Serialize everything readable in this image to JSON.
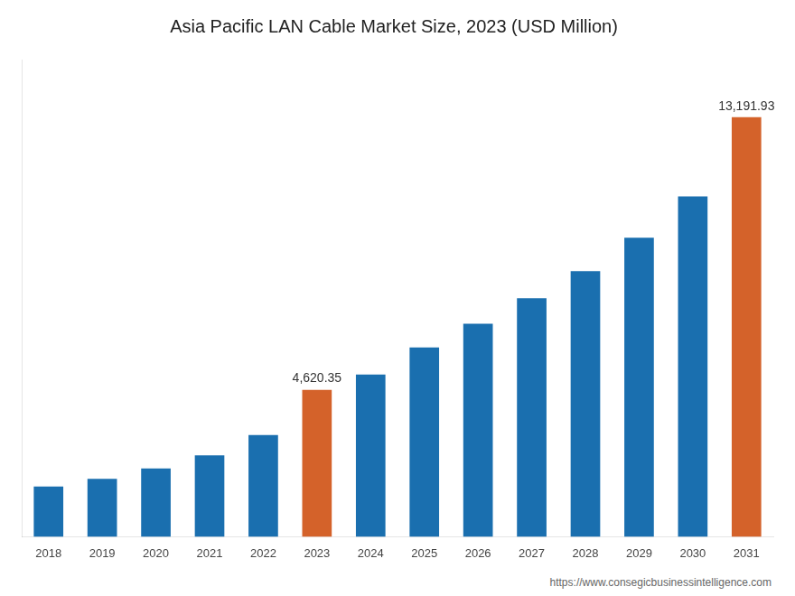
{
  "chart_data": {
    "type": "bar",
    "title": "Asia Pacific LAN Cable Market Size, 2023 (USD Million)",
    "categories": [
      "2018",
      "2019",
      "2020",
      "2021",
      "2022",
      "2023",
      "2024",
      "2025",
      "2026",
      "2027",
      "2028",
      "2029",
      "2030",
      "2031"
    ],
    "values": [
      1580,
      1820,
      2150,
      2560,
      3200,
      4620.35,
      5100,
      5950,
      6700,
      7500,
      8350,
      9400,
      10700,
      13191.93
    ],
    "value_labels": [
      null,
      null,
      null,
      null,
      null,
      "4,620.35",
      null,
      null,
      null,
      null,
      null,
      null,
      null,
      "13,191.93"
    ],
    "data_labels": true,
    "colors": [
      "#1a6faf",
      "#1a6faf",
      "#1a6faf",
      "#1a6faf",
      "#1a6faf",
      "#d4622a",
      "#1a6faf",
      "#1a6faf",
      "#1a6faf",
      "#1a6faf",
      "#1a6faf",
      "#1a6faf",
      "#1a6faf",
      "#d4622a"
    ],
    "ylim": [
      0,
      15000
    ],
    "tick_labels": "x",
    "grid": false,
    "annotations": [
      "https://www.consegicbusinessintelligence.com"
    ]
  }
}
